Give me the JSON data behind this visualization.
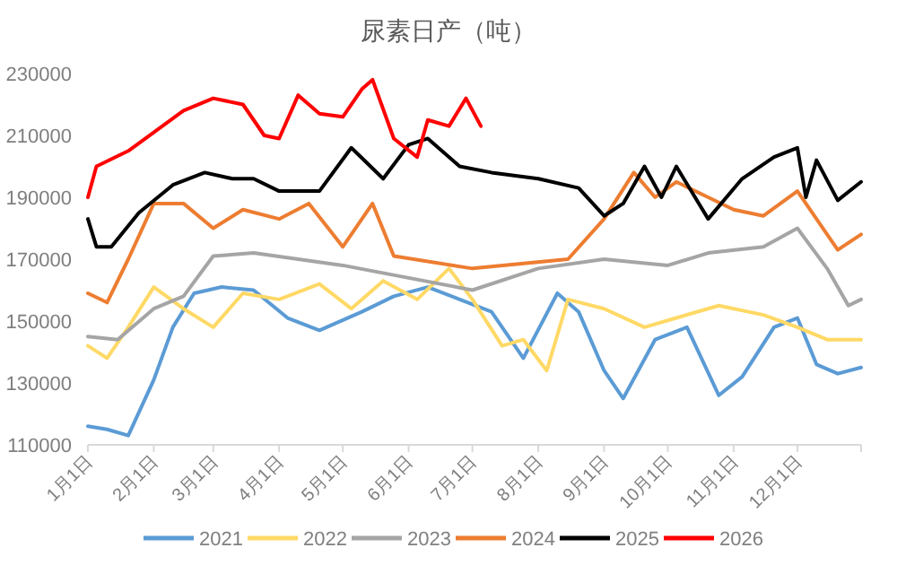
{
  "chart_data": {
    "type": "line",
    "title": "尿素日产（吨）",
    "xlim": [
      "--01-01",
      "--12-31"
    ],
    "xticks": [
      {
        "value": "--01-01",
        "label": "1月1日"
      },
      {
        "value": "--02-01",
        "label": "2月1日"
      },
      {
        "value": "--03-01",
        "label": "3月1日"
      },
      {
        "value": "--04-01",
        "label": "4月1日"
      },
      {
        "value": "--05-01",
        "label": "5月1日"
      },
      {
        "value": "--06-01",
        "label": "6月1日"
      },
      {
        "value": "--07-01",
        "label": "7月1日"
      },
      {
        "value": "--08-01",
        "label": "8月1日"
      },
      {
        "value": "--09-01",
        "label": "9月1日"
      },
      {
        "value": "--10-01",
        "label": "10月1日"
      },
      {
        "value": "--11-01",
        "label": "11月1日"
      },
      {
        "value": "--12-01",
        "label": "12月1日"
      },
      {
        "value": "--12-31",
        "label": null
      }
    ],
    "ylim": [
      110000,
      230000
    ],
    "yticks": [
      110000,
      130000,
      150000,
      170000,
      190000,
      210000,
      230000
    ],
    "grid": false,
    "legend": "bottom",
    "marker": "none",
    "line_style": "solid",
    "series": [
      {
        "name": "2021",
        "color": "#5b9bd5",
        "x": [
          "--01-01",
          "--01-10",
          "--01-20",
          "--02-01",
          "--02-10",
          "--02-20",
          "--03-05",
          "--03-20",
          "--04-05",
          "--04-20",
          "--05-10",
          "--05-25",
          "--06-10",
          "--06-25",
          "--07-10",
          "--07-25",
          "--08-10",
          "--08-20",
          "--09-01",
          "--09-10",
          "--09-25",
          "--10-10",
          "--10-25",
          "--11-05",
          "--11-20",
          "--12-01",
          "--12-10",
          "--12-20",
          "--12-31"
        ],
        "values": [
          116000,
          115000,
          113000,
          131000,
          148000,
          159000,
          161000,
          160000,
          151000,
          147000,
          153000,
          158000,
          161000,
          157000,
          153000,
          138000,
          159000,
          153000,
          134000,
          125000,
          144000,
          148000,
          126000,
          132000,
          148000,
          151000,
          136000,
          133000,
          135000
        ]
      },
      {
        "name": "2022",
        "color": "#ffd966",
        "x": [
          "--01-01",
          "--01-10",
          "--01-20",
          "--02-01",
          "--02-15",
          "--03-01",
          "--03-15",
          "--04-01",
          "--04-20",
          "--05-05",
          "--05-20",
          "--06-05",
          "--06-20",
          "--07-01",
          "--07-15",
          "--07-25",
          "--08-05",
          "--08-15",
          "--09-01",
          "--09-20",
          "--10-05",
          "--10-25",
          "--11-15",
          "--12-01",
          "--12-15",
          "--12-31"
        ],
        "values": [
          142000,
          138000,
          148000,
          161000,
          154000,
          148000,
          159000,
          157000,
          162000,
          154000,
          163000,
          157000,
          167000,
          157000,
          142000,
          144000,
          134000,
          157000,
          154000,
          148000,
          151000,
          155000,
          152000,
          148000,
          144000,
          144000
        ]
      },
      {
        "name": "2023",
        "color": "#a5a5a5",
        "x": [
          "--01-01",
          "--01-15",
          "--02-01",
          "--02-15",
          "--03-01",
          "--03-20",
          "--05-01",
          "--07-01",
          "--08-01",
          "--09-01",
          "--10-01",
          "--10-20",
          "--11-15",
          "--12-01",
          "--12-15",
          "--12-25",
          "--12-31"
        ],
        "values": [
          145000,
          144000,
          154000,
          158000,
          171000,
          172000,
          168000,
          160000,
          167000,
          170000,
          168000,
          172000,
          174000,
          180000,
          167000,
          155000,
          157000
        ]
      },
      {
        "name": "2024",
        "color": "#ed7d31",
        "x": [
          "--01-01",
          "--01-10",
          "--01-20",
          "--02-01",
          "--02-15",
          "--03-01",
          "--03-15",
          "--04-01",
          "--04-15",
          "--05-01",
          "--05-15",
          "--05-25",
          "--07-01",
          "--08-15",
          "--09-01",
          "--09-15",
          "--09-25",
          "--10-05",
          "--10-20",
          "--11-01",
          "--11-15",
          "--12-01",
          "--12-10",
          "--12-20",
          "--12-31"
        ],
        "values": [
          159000,
          156000,
          170000,
          188000,
          188000,
          180000,
          186000,
          183000,
          188000,
          174000,
          188000,
          171000,
          167000,
          170000,
          183000,
          198000,
          190000,
          195000,
          190000,
          186000,
          184000,
          192000,
          183000,
          173000,
          178000
        ]
      },
      {
        "name": "2025",
        "color": "#000000",
        "x": [
          "--01-01",
          "--01-05",
          "--01-12",
          "--01-25",
          "--02-10",
          "--02-25",
          "--03-10",
          "--03-20",
          "--04-01",
          "--04-20",
          "--05-05",
          "--05-20",
          "--06-01",
          "--06-10",
          "--06-25",
          "--07-10",
          "--08-01",
          "--08-20",
          "--09-01",
          "--09-10",
          "--09-20",
          "--09-28",
          "--10-05",
          "--10-20",
          "--11-05",
          "--11-20",
          "--12-01",
          "--12-05",
          "--12-10",
          "--12-20",
          "--12-31"
        ],
        "values": [
          183000,
          174000,
          174000,
          185000,
          194000,
          198000,
          196000,
          196000,
          192000,
          192000,
          206000,
          196000,
          207000,
          209000,
          200000,
          198000,
          196000,
          193000,
          184000,
          188000,
          200000,
          190000,
          200000,
          183000,
          196000,
          203000,
          206000,
          190000,
          202000,
          189000,
          195000
        ]
      },
      {
        "name": "2026",
        "color": "#ff0000",
        "x": [
          "--01-01",
          "--01-05",
          "--01-20",
          "--02-01",
          "--02-15",
          "--03-01",
          "--03-15",
          "--03-25",
          "--04-01",
          "--04-10",
          "--04-20",
          "--05-01",
          "--05-10",
          "--05-15",
          "--05-25",
          "--06-05",
          "--06-10",
          "--06-20",
          "--06-28",
          "--07-05"
        ],
        "values": [
          190000,
          200000,
          205000,
          211000,
          218000,
          222000,
          220000,
          210000,
          209000,
          223000,
          217000,
          216000,
          225000,
          228000,
          209000,
          203000,
          215000,
          213000,
          222000,
          213000
        ]
      }
    ]
  }
}
